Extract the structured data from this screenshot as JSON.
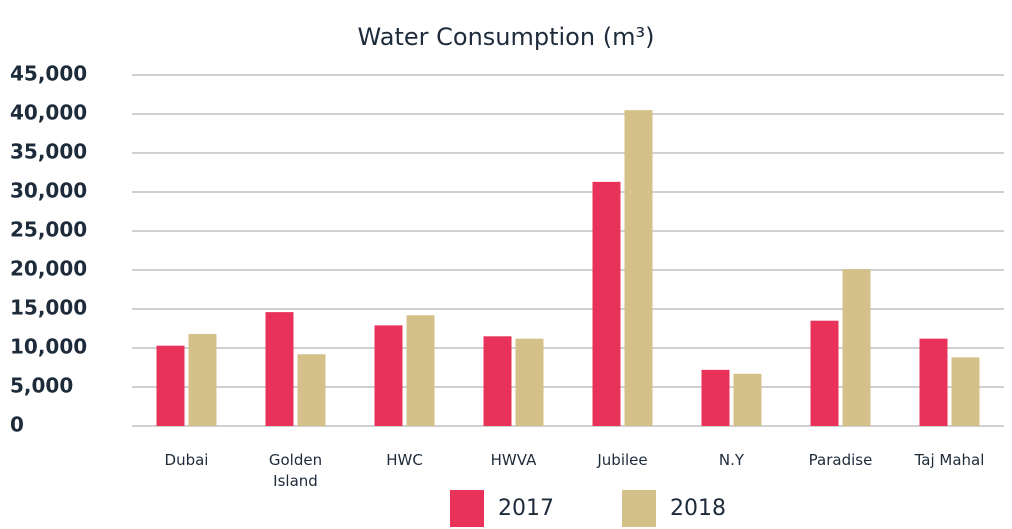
{
  "chart_data": {
    "type": "bar",
    "title": "Water Consumption (m³)",
    "categories": [
      "Dubai",
      "Golden Island",
      "HWC",
      "HWVA",
      "Jubilee",
      "N.Y",
      "Paradise",
      "Taj Mahal"
    ],
    "series": [
      {
        "name": "2017",
        "color": "#e8325a",
        "values": [
          10300,
          14600,
          12900,
          11500,
          31300,
          7200,
          13500,
          11200
        ]
      },
      {
        "name": "2018",
        "color": "#d4c18a",
        "values": [
          11800,
          9200,
          14200,
          11200,
          40500,
          6700,
          20100,
          8800
        ]
      }
    ],
    "ylim": [
      0,
      45000
    ],
    "yticks": [
      0,
      {
        "value": 5000,
        "label": "5,000"
      },
      {
        "value": 10000,
        "label": "10,000"
      },
      {
        "value": 15000,
        "label": "15,000"
      },
      {
        "value": 20000,
        "label": "20,000"
      },
      {
        "value": 25000,
        "label": "25,000"
      },
      {
        "value": 30000,
        "label": "30,000"
      },
      {
        "value": 35000,
        "label": "35,000"
      },
      {
        "value": 40000,
        "label": "40,000"
      },
      {
        "value": 45000,
        "label": "45,000"
      }
    ],
    "grid": true
  }
}
